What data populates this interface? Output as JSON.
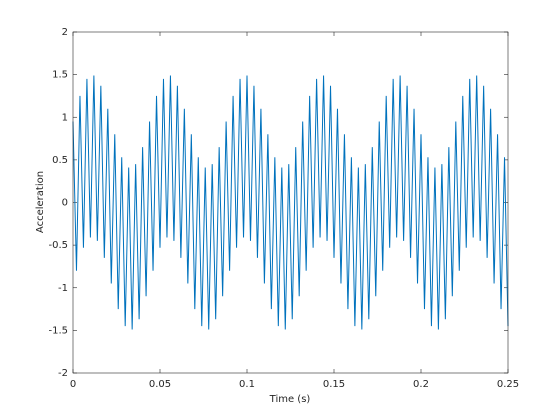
{
  "chart_data": {
    "type": "line",
    "xlabel": "Time (s)",
    "ylabel": "Acceleration",
    "xlim": [
      0,
      0.25
    ],
    "xticks": [
      0,
      0.05,
      0.1,
      0.15,
      0.2,
      0.25
    ],
    "ylim": [
      -2,
      2
    ],
    "yticks": [
      -2,
      -1.5,
      -1,
      -0.5,
      0,
      0.5,
      1,
      1.5,
      2
    ],
    "grid": false,
    "x": [
      0,
      0.002,
      0.004,
      0.006,
      0.008,
      0.01,
      0.012,
      0.014,
      0.016,
      0.018,
      0.02,
      0.022,
      0.024,
      0.026,
      0.028,
      0.03,
      0.032,
      0.034,
      0.036,
      0.038,
      0.04,
      0.042,
      0.044,
      0.046,
      0.048,
      0.05,
      0.052,
      0.054,
      0.056,
      0.058,
      0.06,
      0.062,
      0.064,
      0.066,
      0.068,
      0.07,
      0.072,
      0.074,
      0.076,
      0.078,
      0.08,
      0.082,
      0.084,
      0.086,
      0.088,
      0.09,
      0.092,
      0.094,
      0.096,
      0.098,
      0.1,
      0.102,
      0.104,
      0.106,
      0.108,
      0.11,
      0.112,
      0.114,
      0.116,
      0.118,
      0.12,
      0.122,
      0.124,
      0.126,
      0.128,
      0.13,
      0.132,
      0.134,
      0.136,
      0.138,
      0.14,
      0.142,
      0.144,
      0.146,
      0.148,
      0.15,
      0.152,
      0.154,
      0.156,
      0.158,
      0.16,
      0.162,
      0.164,
      0.166,
      0.168,
      0.17,
      0.172,
      0.174,
      0.176,
      0.178,
      0.18,
      0.182,
      0.184,
      0.186,
      0.188,
      0.19,
      0.192,
      0.194,
      0.196,
      0.198,
      0.2,
      0.202,
      0.204,
      0.206,
      0.208,
      0.21,
      0.212,
      0.214,
      0.216,
      0.218,
      0.22,
      0.222,
      0.224,
      0.226,
      0.228,
      0.23,
      0.232,
      0.234,
      0.236,
      0.238,
      0.24,
      0.242,
      0.244,
      0.246,
      0.248,
      0.25
    ],
    "series": [
      {
        "color": "#0072bd",
        "values": [
          0.95,
          -0.8,
          1.25,
          -0.53,
          1.45,
          -0.41,
          1.49,
          -0.45,
          1.37,
          -0.65,
          1.1,
          -0.95,
          0.8,
          -1.25,
          0.53,
          -1.45,
          0.41,
          -1.49,
          0.45,
          -1.37,
          0.65,
          -1.1,
          0.95,
          -0.8,
          1.25,
          -0.53,
          1.45,
          -0.41,
          1.49,
          -0.45,
          1.37,
          -0.65,
          1.1,
          -0.95,
          0.8,
          -1.25,
          0.53,
          -1.45,
          0.41,
          -1.49,
          0.45,
          -1.37,
          0.65,
          -1.1,
          0.95,
          -0.8,
          1.25,
          -0.53,
          1.45,
          -0.41,
          1.49,
          -0.45,
          1.37,
          -0.65,
          1.1,
          -0.95,
          0.8,
          -1.25,
          0.53,
          -1.45,
          0.41,
          -1.49,
          0.45,
          -1.37,
          0.65,
          -1.1,
          0.95,
          -0.8,
          1.25,
          -0.53,
          1.45,
          -0.41,
          1.49,
          -0.45,
          1.37,
          -0.65,
          1.1,
          -0.95,
          0.8,
          -1.25,
          0.53,
          -1.45,
          0.41,
          -1.49,
          0.45,
          -1.37,
          0.65,
          -1.1,
          0.95,
          -0.8,
          1.25,
          -0.53,
          1.45,
          -0.41,
          1.49,
          -0.45,
          1.37,
          -0.65,
          1.1,
          -0.95,
          0.8,
          -1.25,
          0.53,
          -1.45,
          0.41,
          -1.49,
          0.45,
          -1.37,
          0.65,
          -1.1,
          0.95,
          -0.8,
          1.25,
          -0.53,
          1.45,
          -0.41,
          1.49,
          -0.45,
          1.37,
          -0.65,
          1.1,
          -0.95,
          0.8,
          -1.25,
          0.53,
          -1.45
        ]
      }
    ]
  }
}
